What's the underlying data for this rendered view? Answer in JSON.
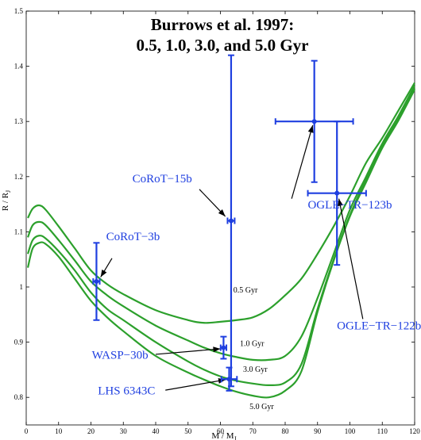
{
  "chart_data": {
    "type": "line",
    "title_lines": [
      "Burrows et al. 1997:",
      "0.5, 1.0, 3.0, and 5.0 Gyr"
    ],
    "xlabel": "M / M_J",
    "ylabel": "R / R_J",
    "xlim": [
      0,
      120
    ],
    "ylim": [
      0.75,
      1.5
    ],
    "xticks": [
      0,
      10,
      20,
      30,
      40,
      50,
      60,
      70,
      80,
      90,
      100,
      110,
      120
    ],
    "yticks": [
      0.8,
      0.9,
      1.0,
      1.1,
      1.2,
      1.3,
      1.4,
      1.5
    ],
    "ytick_labels": [
      "0.8",
      "0.9",
      "1",
      "1.1",
      "1.2",
      "1.3",
      "1.4",
      "1.5"
    ],
    "grid": false,
    "colors": {
      "curves": "#2ca02c",
      "planets": "#1f3fe0",
      "arrows": "#000000"
    },
    "series": [
      {
        "name": "0.5 Gyr",
        "x": [
          0.5,
          2,
          4,
          6,
          10,
          15,
          20,
          25,
          30,
          40,
          50,
          55,
          60,
          65,
          70,
          75,
          80,
          85,
          90,
          95,
          100,
          105,
          110,
          115,
          120
        ],
        "y": [
          1.125,
          1.142,
          1.148,
          1.14,
          1.11,
          1.07,
          1.03,
          1.005,
          0.987,
          0.958,
          0.94,
          0.935,
          0.937,
          0.94,
          0.945,
          0.96,
          0.985,
          1.015,
          1.06,
          1.11,
          1.165,
          1.225,
          1.27,
          1.32,
          1.37
        ]
      },
      {
        "name": "1.0 Gyr",
        "x": [
          0.5,
          2,
          4,
          6,
          10,
          15,
          20,
          25,
          30,
          40,
          50,
          55,
          60,
          65,
          70,
          75,
          80,
          85,
          90,
          95,
          100,
          105,
          110,
          115,
          120
        ],
        "y": [
          1.09,
          1.112,
          1.118,
          1.112,
          1.085,
          1.048,
          1.01,
          0.985,
          0.965,
          0.93,
          0.903,
          0.89,
          0.88,
          0.873,
          0.868,
          0.868,
          0.875,
          0.91,
          0.98,
          1.06,
          1.14,
          1.2,
          1.26,
          1.31,
          1.365
        ]
      },
      {
        "name": "3.0 Gyr",
        "x": [
          0.5,
          2,
          4,
          6,
          10,
          15,
          20,
          25,
          30,
          40,
          50,
          55,
          60,
          65,
          70,
          75,
          80,
          85,
          90,
          95,
          100,
          105,
          110,
          115,
          120
        ],
        "y": [
          1.06,
          1.085,
          1.093,
          1.088,
          1.065,
          1.03,
          0.99,
          0.96,
          0.94,
          0.9,
          0.865,
          0.85,
          0.838,
          0.83,
          0.825,
          0.822,
          0.827,
          0.86,
          0.96,
          1.05,
          1.13,
          1.195,
          1.255,
          1.305,
          1.36
        ]
      },
      {
        "name": "5.0 Gyr",
        "x": [
          0.5,
          2,
          4,
          6,
          10,
          15,
          20,
          25,
          30,
          40,
          50,
          55,
          60,
          65,
          70,
          75,
          80,
          85,
          90,
          95,
          100,
          105,
          110,
          115,
          120
        ],
        "y": [
          1.035,
          1.07,
          1.08,
          1.078,
          1.055,
          1.015,
          0.975,
          0.945,
          0.92,
          0.875,
          0.845,
          0.832,
          0.82,
          0.81,
          0.803,
          0.8,
          0.812,
          0.847,
          0.955,
          1.048,
          1.128,
          1.19,
          1.252,
          1.302,
          1.358
        ]
      }
    ],
    "age_labels": [
      {
        "text": "0.5 Gyr",
        "x": 64,
        "y": 0.99
      },
      {
        "text": "1.0 Gyr",
        "x": 66,
        "y": 0.893
      },
      {
        "text": "3.0 Gyr",
        "x": 67,
        "y": 0.846
      },
      {
        "text": "5.0 Gyr",
        "x": 69,
        "y": 0.779
      }
    ],
    "planets": [
      {
        "name": "CoRoT−3b",
        "x": 21.7,
        "xerr": 1.0,
        "y": 1.01,
        "yerr": 0.07,
        "label_x": 33,
        "label_y": 1.085,
        "arrow_from": [
          26.5,
          1.052
        ],
        "arrow_to": [
          23.0,
          1.018
        ]
      },
      {
        "name": "CoRoT−15b",
        "x": 63.3,
        "xerr": 1.1,
        "y": 1.12,
        "yerr": 0.3,
        "label_x": 42,
        "label_y": 1.19,
        "arrow_from": [
          53.5,
          1.177
        ],
        "arrow_to": [
          61.5,
          1.128
        ]
      },
      {
        "name": "OGLE−TR−123b",
        "x": 89.0,
        "xerr": 12.0,
        "y": 1.3,
        "yerr": 0.11,
        "label_x": 100,
        "label_y": 1.142,
        "arrow_from": [
          82.0,
          1.16
        ],
        "arrow_to": [
          88.5,
          1.293
        ]
      },
      {
        "name": "OGLE−TR−122b",
        "x": 96.0,
        "xerr": 9.0,
        "y": 1.17,
        "yerr": 0.13,
        "label_x": 109,
        "label_y": 0.923,
        "arrow_from": [
          104.0,
          0.942
        ],
        "arrow_to": [
          96.6,
          1.16
        ]
      },
      {
        "name": "WASP−30b",
        "x": 60.96,
        "xerr": 0.89,
        "y": 0.89,
        "yerr": 0.02,
        "label_x": 29,
        "label_y": 0.87,
        "arrow_from": [
          40.0,
          0.878
        ],
        "arrow_to": [
          60.0,
          0.888
        ]
      },
      {
        "name": "LHS 6343C",
        "x": 62.7,
        "xerr": 2.4,
        "y": 0.833,
        "yerr": 0.021,
        "label_x": 31,
        "label_y": 0.805,
        "arrow_from": [
          43.0,
          0.813
        ],
        "arrow_to": [
          61.6,
          0.832
        ]
      }
    ]
  }
}
